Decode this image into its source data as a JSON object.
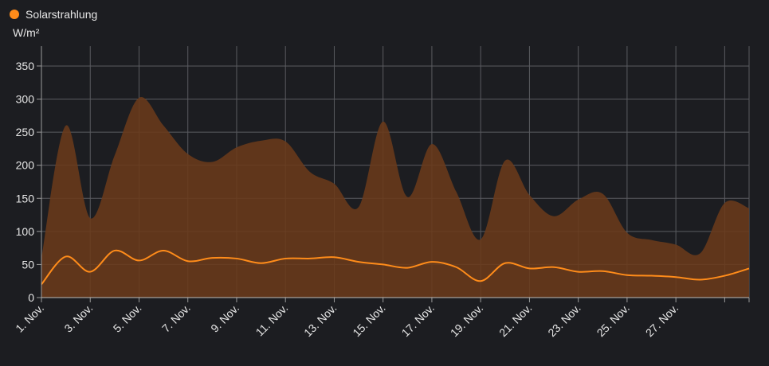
{
  "chart_data": {
    "type": "area",
    "title": "",
    "legend": {
      "label": "Solarstrahlung",
      "color": "#ff8c1a",
      "position": "top-left"
    },
    "ylabel": "W/m²",
    "xlabel": "",
    "ylim": [
      0,
      380
    ],
    "yticks": [
      0,
      50,
      100,
      150,
      200,
      250,
      300,
      350
    ],
    "grid": true,
    "x_day_range": [
      1,
      30
    ],
    "x_tick_labels": [
      {
        "day": 1,
        "label": "1. Nov."
      },
      {
        "day": 3,
        "label": "3. Nov."
      },
      {
        "day": 5,
        "label": "5. Nov."
      },
      {
        "day": 7,
        "label": "7. Nov."
      },
      {
        "day": 9,
        "label": "9. Nov."
      },
      {
        "day": 11,
        "label": "11. Nov."
      },
      {
        "day": 13,
        "label": "13. Nov."
      },
      {
        "day": 15,
        "label": "15. Nov."
      },
      {
        "day": 17,
        "label": "17. Nov."
      },
      {
        "day": 19,
        "label": "19. Nov."
      },
      {
        "day": 21,
        "label": "21. Nov."
      },
      {
        "day": 23,
        "label": "23. Nov."
      },
      {
        "day": 25,
        "label": "25. Nov."
      },
      {
        "day": 27,
        "label": "27. Nov."
      }
    ],
    "extra_ticks_unlabeled": [
      29,
      30
    ],
    "series": [
      {
        "kind": "range",
        "color": "#6a3a1a",
        "points": [
          {
            "x": 1,
            "y": 60
          },
          {
            "x": 2,
            "y": 260
          },
          {
            "x": 3,
            "y": 120
          },
          {
            "x": 4,
            "y": 215
          },
          {
            "x": 5,
            "y": 302
          },
          {
            "x": 6,
            "y": 260
          },
          {
            "x": 7,
            "y": 217
          },
          {
            "x": 8,
            "y": 205
          },
          {
            "x": 9,
            "y": 227
          },
          {
            "x": 10,
            "y": 237
          },
          {
            "x": 11,
            "y": 236
          },
          {
            "x": 12,
            "y": 190
          },
          {
            "x": 13,
            "y": 172
          },
          {
            "x": 14,
            "y": 137
          },
          {
            "x": 15,
            "y": 266
          },
          {
            "x": 16,
            "y": 152
          },
          {
            "x": 17,
            "y": 232
          },
          {
            "x": 18,
            "y": 160
          },
          {
            "x": 19,
            "y": 88
          },
          {
            "x": 20,
            "y": 207
          },
          {
            "x": 21,
            "y": 155
          },
          {
            "x": 22,
            "y": 123
          },
          {
            "x": 23,
            "y": 148
          },
          {
            "x": 24,
            "y": 157
          },
          {
            "x": 25,
            "y": 98
          },
          {
            "x": 26,
            "y": 87
          },
          {
            "x": 27,
            "y": 80
          },
          {
            "x": 28,
            "y": 67
          },
          {
            "x": 29,
            "y": 143
          },
          {
            "x": 30,
            "y": 135
          }
        ]
      },
      {
        "kind": "line",
        "color": "#ff8c1a",
        "points": [
          {
            "x": 1,
            "y": 20
          },
          {
            "x": 2,
            "y": 62
          },
          {
            "x": 3,
            "y": 39
          },
          {
            "x": 4,
            "y": 71
          },
          {
            "x": 5,
            "y": 56
          },
          {
            "x": 6,
            "y": 71
          },
          {
            "x": 7,
            "y": 55
          },
          {
            "x": 8,
            "y": 60
          },
          {
            "x": 9,
            "y": 59
          },
          {
            "x": 10,
            "y": 52
          },
          {
            "x": 11,
            "y": 59
          },
          {
            "x": 12,
            "y": 59
          },
          {
            "x": 13,
            "y": 61
          },
          {
            "x": 14,
            "y": 54
          },
          {
            "x": 15,
            "y": 50
          },
          {
            "x": 16,
            "y": 45
          },
          {
            "x": 17,
            "y": 54
          },
          {
            "x": 18,
            "y": 46
          },
          {
            "x": 19,
            "y": 25
          },
          {
            "x": 20,
            "y": 52
          },
          {
            "x": 21,
            "y": 44
          },
          {
            "x": 22,
            "y": 46
          },
          {
            "x": 23,
            "y": 39
          },
          {
            "x": 24,
            "y": 40
          },
          {
            "x": 25,
            "y": 34
          },
          {
            "x": 26,
            "y": 33
          },
          {
            "x": 27,
            "y": 31
          },
          {
            "x": 28,
            "y": 27
          },
          {
            "x": 29,
            "y": 33
          },
          {
            "x": 30,
            "y": 44
          }
        ]
      }
    ]
  }
}
